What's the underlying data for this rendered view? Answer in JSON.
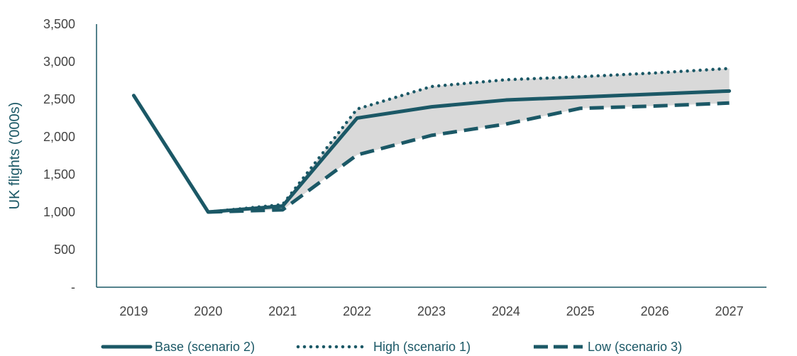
{
  "chart_data": {
    "type": "line",
    "title": "",
    "xlabel": "",
    "ylabel": "UK flights ('000s)",
    "categories": [
      "2019",
      "2020",
      "2021",
      "2022",
      "2023",
      "2024",
      "2025",
      "2026",
      "2027"
    ],
    "yticks": [
      "-",
      "500",
      "1,000",
      "1,500",
      "2,000",
      "2,500",
      "3,000",
      "3,500"
    ],
    "ylim": [
      0,
      3500
    ],
    "grid": false,
    "legend_position": "bottom",
    "colors": {
      "line": "#1b5866",
      "band": "#d9d9d9",
      "axis": "#1b5866"
    },
    "series": [
      {
        "name": "Base (scenario 2)",
        "style": "solid",
        "values": [
          2550,
          1000,
          1080,
          2250,
          2400,
          2490,
          2530,
          2570,
          2610
        ]
      },
      {
        "name": "High (scenario 1)",
        "style": "dotted",
        "values": [
          null,
          1000,
          1100,
          2370,
          2670,
          2760,
          2800,
          2850,
          2910
        ]
      },
      {
        "name": "Low (scenario 3)",
        "style": "dashed",
        "values": [
          null,
          1000,
          1030,
          1760,
          2020,
          2170,
          2380,
          2410,
          2450
        ]
      }
    ]
  }
}
